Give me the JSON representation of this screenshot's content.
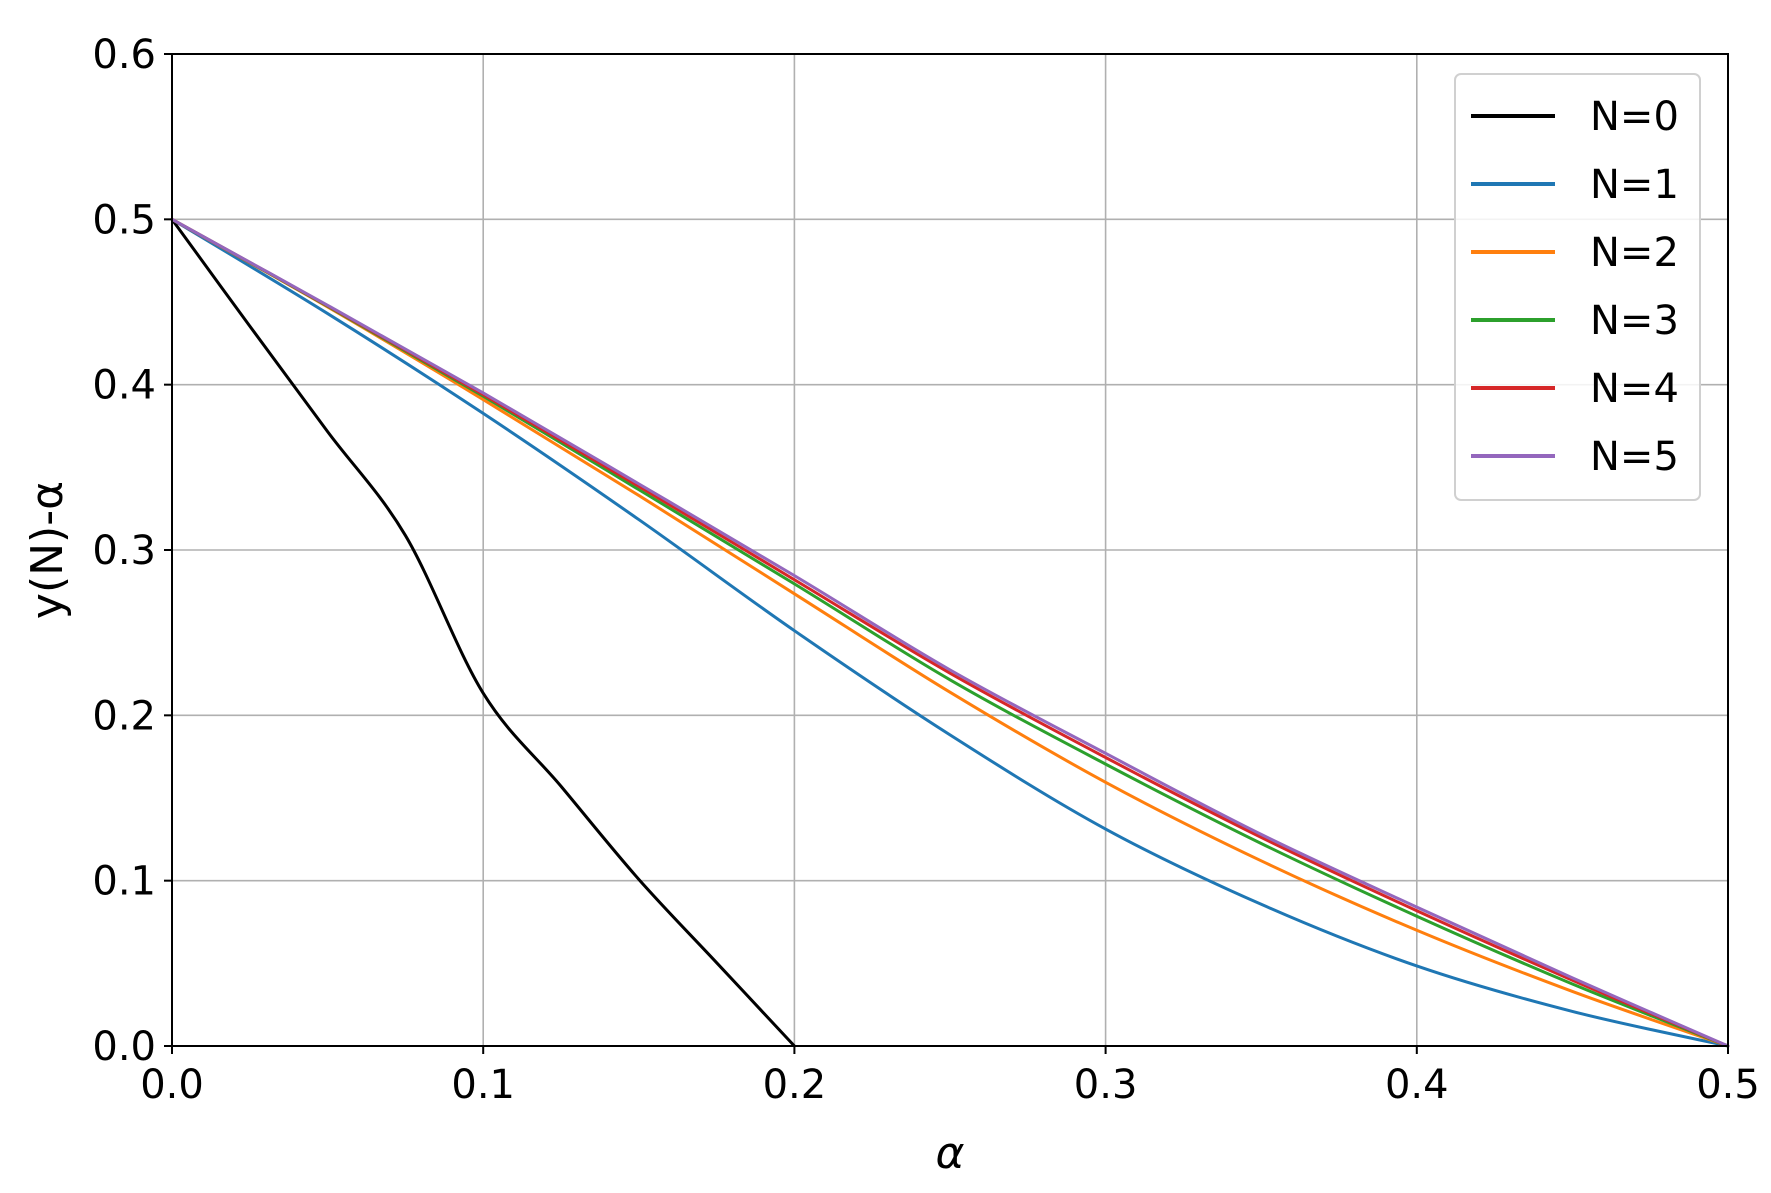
{
  "chart_data": {
    "type": "line",
    "xlabel": "α",
    "ylabel": "y(N)-α",
    "xlim": [
      0.0,
      0.5
    ],
    "ylim": [
      0.0,
      0.6
    ],
    "xticks": [
      "0.0",
      "0.1",
      "0.2",
      "0.3",
      "0.4",
      "0.5"
    ],
    "yticks": [
      "0.0",
      "0.1",
      "0.2",
      "0.3",
      "0.4",
      "0.5",
      "0.6"
    ],
    "xtick_values": [
      0.0,
      0.1,
      0.2,
      0.3,
      0.4,
      0.5
    ],
    "ytick_values": [
      0.0,
      0.1,
      0.2,
      0.3,
      0.4,
      0.5,
      0.6
    ],
    "grid": true,
    "legend_position": "top-right",
    "series": [
      {
        "name": "N=0",
        "color": "#000000",
        "x": [
          0.0,
          0.025,
          0.05,
          0.075,
          0.1,
          0.125,
          0.15,
          0.175,
          0.2
        ],
        "y": [
          0.5,
          0.4354,
          0.3716,
          0.3088,
          0.2134,
          0.1571,
          0.1008,
          0.0504,
          0.0
        ]
      },
      {
        "name": "N=1",
        "color": "#1f77b4",
        "x": [
          0.0,
          0.05,
          0.1,
          0.15,
          0.2,
          0.25,
          0.3,
          0.35,
          0.4,
          0.45,
          0.5
        ],
        "y": [
          0.5,
          0.443,
          0.3826,
          0.3184,
          0.2512,
          0.1882,
          0.1312,
          0.0857,
          0.0484,
          0.0209,
          0.0
        ]
      },
      {
        "name": "N=2",
        "color": "#ff7f0e",
        "x": [
          0.0,
          0.05,
          0.1,
          0.15,
          0.2,
          0.25,
          0.3,
          0.35,
          0.4,
          0.45,
          0.5
        ],
        "y": [
          0.5,
          0.447,
          0.391,
          0.333,
          0.2735,
          0.214,
          0.1595,
          0.112,
          0.07,
          0.033,
          0.0
        ]
      },
      {
        "name": "N=3",
        "color": "#2ca02c",
        "x": [
          0.0,
          0.05,
          0.1,
          0.15,
          0.2,
          0.25,
          0.3,
          0.35,
          0.4,
          0.45,
          0.5
        ],
        "y": [
          0.5,
          0.4475,
          0.393,
          0.3365,
          0.2795,
          0.2215,
          0.1705,
          0.1225,
          0.0785,
          0.0375,
          0.0
        ]
      },
      {
        "name": "N=4",
        "color": "#d62728",
        "x": [
          0.0,
          0.05,
          0.1,
          0.15,
          0.2,
          0.25,
          0.3,
          0.35,
          0.4,
          0.45,
          0.5
        ],
        "y": [
          0.5,
          0.4478,
          0.394,
          0.3385,
          0.282,
          0.2255,
          0.1745,
          0.1262,
          0.0818,
          0.0398,
          0.0
        ]
      },
      {
        "name": "N=5",
        "color": "#9467bd",
        "x": [
          0.0,
          0.05,
          0.1,
          0.15,
          0.2,
          0.25,
          0.3,
          0.35,
          0.4,
          0.45,
          0.5
        ],
        "y": [
          0.5,
          0.448,
          0.395,
          0.34,
          0.2845,
          0.2275,
          0.177,
          0.128,
          0.084,
          0.0412,
          0.0
        ]
      }
    ]
  }
}
